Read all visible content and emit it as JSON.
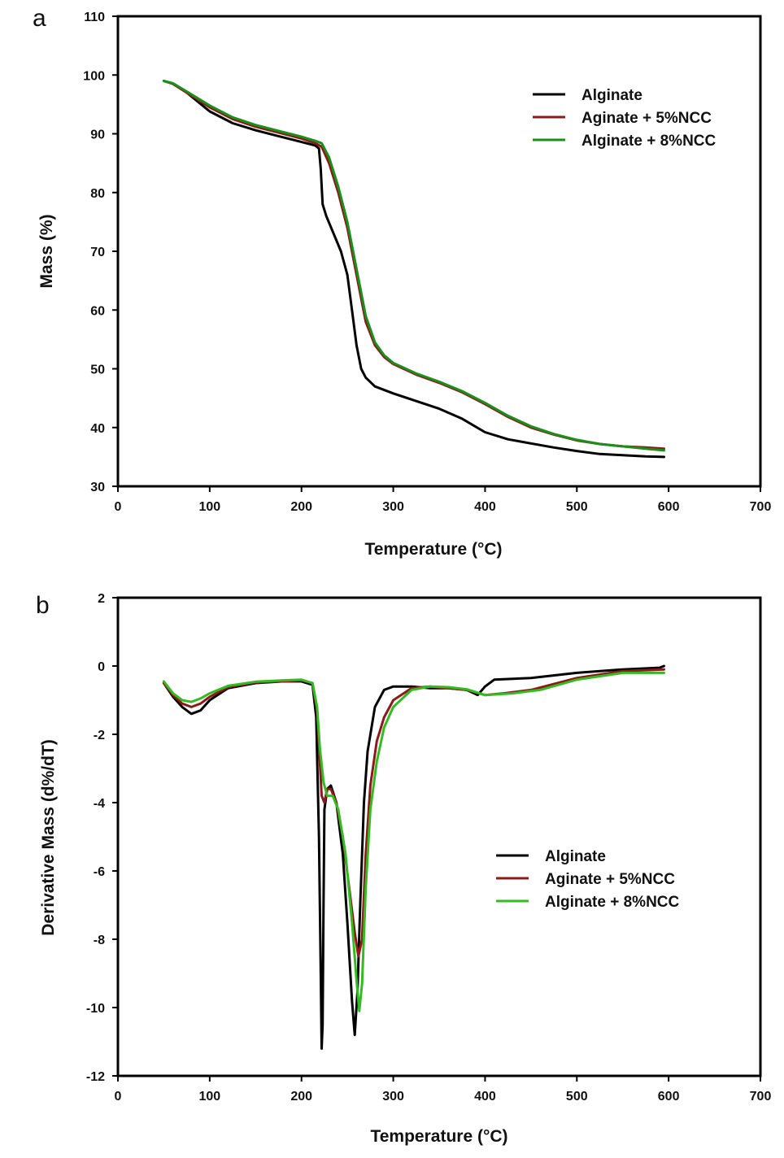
{
  "chart_data": [
    {
      "type": "line",
      "panel": "a",
      "title": "",
      "xlabel": "Temperature (°C)",
      "ylabel": "Mass (%)",
      "xlim": [
        0,
        700
      ],
      "ylim": [
        30,
        110
      ],
      "xticks": [
        0,
        100,
        200,
        300,
        400,
        500,
        600,
        700
      ],
      "yticks": [
        30,
        40,
        50,
        60,
        70,
        80,
        90,
        100,
        110
      ],
      "grid": false,
      "legend_position": "top-right",
      "series": [
        {
          "name": "Alginate",
          "color": "#000000",
          "points": [
            [
              50,
              99
            ],
            [
              60,
              98.5
            ],
            [
              75,
              97
            ],
            [
              100,
              93.8
            ],
            [
              125,
              91.8
            ],
            [
              150,
              90.6
            ],
            [
              175,
              89.6
            ],
            [
              200,
              88.6
            ],
            [
              215,
              88
            ],
            [
              219,
              87.5
            ],
            [
              221,
              84
            ],
            [
              223,
              78
            ],
            [
              227,
              76
            ],
            [
              235,
              73
            ],
            [
              243,
              70
            ],
            [
              250,
              66
            ],
            [
              255,
              60
            ],
            [
              260,
              54
            ],
            [
              265,
              50
            ],
            [
              270,
              48.5
            ],
            [
              280,
              47
            ],
            [
              300,
              45.8
            ],
            [
              325,
              44.5
            ],
            [
              350,
              43.2
            ],
            [
              375,
              41.5
            ],
            [
              400,
              39.2
            ],
            [
              425,
              38
            ],
            [
              450,
              37.3
            ],
            [
              475,
              36.6
            ],
            [
              500,
              36
            ],
            [
              525,
              35.5
            ],
            [
              550,
              35.3
            ],
            [
              575,
              35.1
            ],
            [
              595,
              35
            ]
          ]
        },
        {
          "name": "Aginate + 5%NCC",
          "color": "#8b1a1a",
          "points": [
            [
              50,
              99
            ],
            [
              60,
              98.5
            ],
            [
              75,
              97
            ],
            [
              100,
              94.5
            ],
            [
              125,
              92.5
            ],
            [
              150,
              91.2
            ],
            [
              175,
              90.2
            ],
            [
              200,
              89.2
            ],
            [
              215,
              88.4
            ],
            [
              222,
              87.8
            ],
            [
              230,
              85
            ],
            [
              240,
              80
            ],
            [
              250,
              74
            ],
            [
              260,
              66
            ],
            [
              270,
              58
            ],
            [
              280,
              54
            ],
            [
              290,
              52
            ],
            [
              300,
              50.8
            ],
            [
              325,
              49
            ],
            [
              350,
              47.6
            ],
            [
              375,
              46
            ],
            [
              400,
              44
            ],
            [
              425,
              41.8
            ],
            [
              450,
              40
            ],
            [
              475,
              38.8
            ],
            [
              500,
              37.8
            ],
            [
              525,
              37.2
            ],
            [
              550,
              36.8
            ],
            [
              575,
              36.6
            ],
            [
              595,
              36.4
            ]
          ]
        },
        {
          "name": "Alginate + 8%NCC",
          "color": "#1a8f1a",
          "points": [
            [
              50,
              99
            ],
            [
              60,
              98.6
            ],
            [
              75,
              97.2
            ],
            [
              100,
              94.8
            ],
            [
              125,
              92.8
            ],
            [
              150,
              91.5
            ],
            [
              175,
              90.5
            ],
            [
              200,
              89.5
            ],
            [
              215,
              88.8
            ],
            [
              222,
              88.4
            ],
            [
              230,
              86
            ],
            [
              240,
              81
            ],
            [
              250,
              75
            ],
            [
              260,
              67
            ],
            [
              270,
              59
            ],
            [
              280,
              54.5
            ],
            [
              290,
              52.3
            ],
            [
              300,
              51
            ],
            [
              325,
              49.2
            ],
            [
              350,
              47.8
            ],
            [
              375,
              46.2
            ],
            [
              400,
              44.2
            ],
            [
              425,
              42
            ],
            [
              450,
              40.2
            ],
            [
              475,
              38.9
            ],
            [
              500,
              37.9
            ],
            [
              525,
              37.2
            ],
            [
              550,
              36.8
            ],
            [
              575,
              36.4
            ],
            [
              595,
              36.1
            ]
          ]
        }
      ]
    },
    {
      "type": "line",
      "panel": "b",
      "title": "",
      "xlabel": "Temperature (°C)",
      "ylabel": "Derivative Mass (d%/dT)",
      "xlim": [
        0,
        700
      ],
      "ylim": [
        -12,
        2
      ],
      "xticks": [
        0,
        100,
        200,
        300,
        400,
        500,
        600,
        700
      ],
      "yticks": [
        -12,
        -10,
        -8,
        -6,
        -4,
        -2,
        0,
        2
      ],
      "grid": false,
      "legend_position": "center-right",
      "series": [
        {
          "name": "Alginate",
          "color": "#000000",
          "points": [
            [
              50,
              -0.5
            ],
            [
              60,
              -0.9
            ],
            [
              70,
              -1.2
            ],
            [
              80,
              -1.4
            ],
            [
              90,
              -1.3
            ],
            [
              100,
              -1.0
            ],
            [
              120,
              -0.65
            ],
            [
              150,
              -0.5
            ],
            [
              180,
              -0.45
            ],
            [
              200,
              -0.45
            ],
            [
              212,
              -0.55
            ],
            [
              216,
              -1.5
            ],
            [
              219,
              -5
            ],
            [
              221,
              -9
            ],
            [
              222,
              -11.2
            ],
            [
              223,
              -10.5
            ],
            [
              224,
              -7
            ],
            [
              225,
              -4.2
            ],
            [
              228,
              -3.6
            ],
            [
              232,
              -3.5
            ],
            [
              238,
              -4
            ],
            [
              245,
              -5.5
            ],
            [
              250,
              -7.5
            ],
            [
              255,
              -9.8
            ],
            [
              258,
              -10.8
            ],
            [
              261,
              -9.5
            ],
            [
              264,
              -7
            ],
            [
              268,
              -4
            ],
            [
              272,
              -2.5
            ],
            [
              280,
              -1.2
            ],
            [
              290,
              -0.7
            ],
            [
              300,
              -0.6
            ],
            [
              320,
              -0.6
            ],
            [
              340,
              -0.65
            ],
            [
              360,
              -0.65
            ],
            [
              380,
              -0.7
            ],
            [
              392,
              -0.85
            ],
            [
              400,
              -0.6
            ],
            [
              410,
              -0.4
            ],
            [
              450,
              -0.35
            ],
            [
              500,
              -0.2
            ],
            [
              550,
              -0.1
            ],
            [
              590,
              -0.05
            ],
            [
              595,
              0
            ]
          ]
        },
        {
          "name": "Aginate + 5%NCC",
          "color": "#8b1a1a",
          "points": [
            [
              50,
              -0.5
            ],
            [
              60,
              -0.85
            ],
            [
              70,
              -1.1
            ],
            [
              80,
              -1.2
            ],
            [
              90,
              -1.1
            ],
            [
              100,
              -0.9
            ],
            [
              120,
              -0.62
            ],
            [
              150,
              -0.48
            ],
            [
              180,
              -0.45
            ],
            [
              200,
              -0.42
            ],
            [
              212,
              -0.5
            ],
            [
              217,
              -1.3
            ],
            [
              220,
              -2.8
            ],
            [
              222,
              -3.8
            ],
            [
              225,
              -4.0
            ],
            [
              228,
              -3.6
            ],
            [
              232,
              -3.6
            ],
            [
              238,
              -4
            ],
            [
              245,
              -5
            ],
            [
              252,
              -6.5
            ],
            [
              258,
              -7.8
            ],
            [
              262,
              -8.5
            ],
            [
              266,
              -8
            ],
            [
              270,
              -5.5
            ],
            [
              275,
              -3.5
            ],
            [
              282,
              -2.2
            ],
            [
              290,
              -1.5
            ],
            [
              300,
              -1.0
            ],
            [
              320,
              -0.65
            ],
            [
              340,
              -0.6
            ],
            [
              360,
              -0.65
            ],
            [
              380,
              -0.7
            ],
            [
              400,
              -0.85
            ],
            [
              420,
              -0.8
            ],
            [
              450,
              -0.7
            ],
            [
              500,
              -0.35
            ],
            [
              550,
              -0.15
            ],
            [
              595,
              -0.1
            ]
          ]
        },
        {
          "name": "Alginate + 8%NCC",
          "color": "#33bb22",
          "points": [
            [
              50,
              -0.45
            ],
            [
              60,
              -0.8
            ],
            [
              70,
              -1.0
            ],
            [
              80,
              -1.05
            ],
            [
              90,
              -0.95
            ],
            [
              100,
              -0.8
            ],
            [
              120,
              -0.58
            ],
            [
              150,
              -0.46
            ],
            [
              180,
              -0.42
            ],
            [
              200,
              -0.4
            ],
            [
              212,
              -0.5
            ],
            [
              217,
              -1.2
            ],
            [
              220,
              -2.4
            ],
            [
              224,
              -3.4
            ],
            [
              228,
              -3.8
            ],
            [
              234,
              -3.8
            ],
            [
              240,
              -4.2
            ],
            [
              248,
              -5.5
            ],
            [
              255,
              -7.5
            ],
            [
              260,
              -9.2
            ],
            [
              263,
              -10.1
            ],
            [
              266,
              -9.3
            ],
            [
              270,
              -6.5
            ],
            [
              275,
              -4.2
            ],
            [
              282,
              -2.8
            ],
            [
              290,
              -1.8
            ],
            [
              300,
              -1.2
            ],
            [
              320,
              -0.7
            ],
            [
              340,
              -0.6
            ],
            [
              360,
              -0.62
            ],
            [
              380,
              -0.68
            ],
            [
              400,
              -0.85
            ],
            [
              430,
              -0.8
            ],
            [
              460,
              -0.7
            ],
            [
              500,
              -0.4
            ],
            [
              550,
              -0.2
            ],
            [
              595,
              -0.2
            ]
          ]
        }
      ]
    }
  ]
}
